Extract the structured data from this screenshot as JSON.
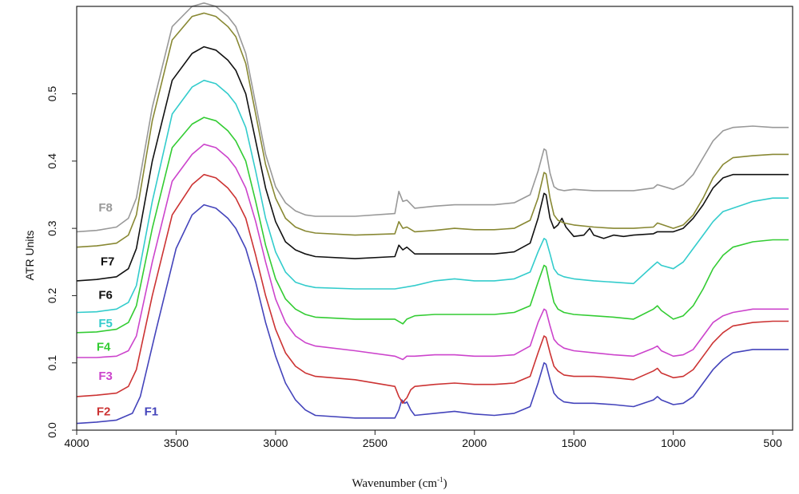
{
  "chart_data": {
    "type": "line",
    "xlabel": "Wavenumber",
    "xlabel_unit": "(cm",
    "xlabel_unit_exp": "-1",
    "xlabel_unit_close": ")",
    "ylabel": "ATR Units",
    "xlim": [
      4000,
      400
    ],
    "ylim": [
      0,
      0.63
    ],
    "x_reversed": true,
    "x_ticks": [
      4000,
      3500,
      3000,
      2500,
      2000,
      1500,
      1000,
      500
    ],
    "x_tick_labels": [
      "4000",
      "3500",
      "3000",
      "2500",
      "2000",
      "1500",
      "1000",
      "500"
    ],
    "y_ticks": [
      0.0,
      0.1,
      0.2,
      0.3,
      0.4,
      0.5
    ],
    "y_tick_labels": [
      "0.0",
      "0.1",
      "0.2",
      "0.3",
      "0.4",
      "0.5"
    ],
    "grid": false,
    "legend": "inline labels at left",
    "series": [
      {
        "name": "F1",
        "color": "#4444bb",
        "x": [
          4000,
          3900,
          3800,
          3720,
          3680,
          3600,
          3500,
          3420,
          3360,
          3300,
          3240,
          3200,
          3150,
          3100,
          3050,
          3000,
          2950,
          2900,
          2850,
          2800,
          2600,
          2400,
          2380,
          2365,
          2350,
          2340,
          2320,
          2300,
          2200,
          2100,
          2000,
          1900,
          1800,
          1720,
          1680,
          1650,
          1640,
          1620,
          1600,
          1580,
          1550,
          1500,
          1400,
          1300,
          1200,
          1100,
          1080,
          1060,
          1000,
          950,
          900,
          850,
          800,
          750,
          700,
          600,
          500,
          420
        ],
        "y": [
          0.01,
          0.012,
          0.015,
          0.025,
          0.05,
          0.15,
          0.27,
          0.32,
          0.335,
          0.33,
          0.315,
          0.3,
          0.27,
          0.22,
          0.16,
          0.11,
          0.07,
          0.045,
          0.03,
          0.022,
          0.018,
          0.018,
          0.03,
          0.045,
          0.04,
          0.042,
          0.03,
          0.022,
          0.025,
          0.028,
          0.024,
          0.022,
          0.025,
          0.035,
          0.07,
          0.1,
          0.098,
          0.075,
          0.055,
          0.048,
          0.042,
          0.04,
          0.04,
          0.038,
          0.035,
          0.045,
          0.05,
          0.045,
          0.038,
          0.04,
          0.05,
          0.07,
          0.09,
          0.105,
          0.115,
          0.12,
          0.12,
          0.12
        ]
      },
      {
        "name": "F2",
        "color": "#cc3333",
        "x": [
          4000,
          3900,
          3800,
          3740,
          3700,
          3620,
          3520,
          3420,
          3360,
          3300,
          3240,
          3200,
          3150,
          3100,
          3050,
          3000,
          2950,
          2900,
          2850,
          2800,
          2600,
          2400,
          2380,
          2360,
          2350,
          2340,
          2320,
          2300,
          2200,
          2100,
          2000,
          1900,
          1800,
          1720,
          1680,
          1650,
          1640,
          1620,
          1600,
          1580,
          1550,
          1500,
          1400,
          1300,
          1200,
          1100,
          1080,
          1060,
          1000,
          950,
          900,
          850,
          800,
          750,
          700,
          600,
          500,
          420
        ],
        "y": [
          0.05,
          0.052,
          0.055,
          0.065,
          0.09,
          0.2,
          0.32,
          0.365,
          0.38,
          0.375,
          0.36,
          0.345,
          0.315,
          0.26,
          0.2,
          0.15,
          0.115,
          0.095,
          0.085,
          0.08,
          0.075,
          0.065,
          0.05,
          0.04,
          0.045,
          0.048,
          0.06,
          0.065,
          0.068,
          0.07,
          0.068,
          0.068,
          0.07,
          0.08,
          0.115,
          0.14,
          0.138,
          0.115,
          0.095,
          0.088,
          0.082,
          0.08,
          0.08,
          0.078,
          0.075,
          0.088,
          0.092,
          0.085,
          0.078,
          0.08,
          0.09,
          0.11,
          0.13,
          0.145,
          0.155,
          0.16,
          0.162,
          0.162
        ]
      },
      {
        "name": "F3",
        "color": "#cc44cc",
        "x": [
          4000,
          3900,
          3800,
          3740,
          3700,
          3620,
          3520,
          3420,
          3360,
          3300,
          3240,
          3200,
          3150,
          3100,
          3050,
          3000,
          2950,
          2900,
          2850,
          2800,
          2600,
          2400,
          2360,
          2340,
          2300,
          2200,
          2100,
          2000,
          1900,
          1800,
          1720,
          1680,
          1650,
          1640,
          1620,
          1600,
          1580,
          1550,
          1500,
          1400,
          1300,
          1200,
          1100,
          1080,
          1060,
          1000,
          950,
          900,
          850,
          800,
          750,
          700,
          600,
          500,
          420
        ],
        "y": [
          0.108,
          0.108,
          0.11,
          0.118,
          0.14,
          0.25,
          0.37,
          0.41,
          0.425,
          0.42,
          0.405,
          0.39,
          0.36,
          0.31,
          0.25,
          0.195,
          0.16,
          0.14,
          0.13,
          0.125,
          0.118,
          0.11,
          0.105,
          0.11,
          0.11,
          0.112,
          0.112,
          0.11,
          0.11,
          0.112,
          0.125,
          0.16,
          0.18,
          0.178,
          0.155,
          0.135,
          0.128,
          0.122,
          0.118,
          0.115,
          0.112,
          0.11,
          0.122,
          0.125,
          0.118,
          0.11,
          0.112,
          0.12,
          0.14,
          0.16,
          0.17,
          0.175,
          0.18,
          0.18,
          0.18
        ]
      },
      {
        "name": "F4",
        "color": "#33cc33",
        "x": [
          4000,
          3900,
          3800,
          3740,
          3700,
          3620,
          3520,
          3420,
          3360,
          3300,
          3240,
          3200,
          3150,
          3100,
          3050,
          3000,
          2950,
          2900,
          2850,
          2800,
          2600,
          2400,
          2360,
          2340,
          2300,
          2200,
          2100,
          2000,
          1900,
          1800,
          1720,
          1680,
          1650,
          1640,
          1620,
          1600,
          1580,
          1550,
          1500,
          1400,
          1300,
          1200,
          1100,
          1080,
          1060,
          1000,
          950,
          900,
          850,
          800,
          750,
          700,
          600,
          500,
          420
        ],
        "y": [
          0.145,
          0.146,
          0.15,
          0.16,
          0.185,
          0.3,
          0.42,
          0.455,
          0.465,
          0.46,
          0.445,
          0.43,
          0.4,
          0.34,
          0.275,
          0.225,
          0.195,
          0.18,
          0.172,
          0.168,
          0.165,
          0.165,
          0.158,
          0.165,
          0.17,
          0.172,
          0.172,
          0.172,
          0.172,
          0.175,
          0.185,
          0.22,
          0.245,
          0.243,
          0.215,
          0.19,
          0.18,
          0.175,
          0.172,
          0.17,
          0.168,
          0.165,
          0.18,
          0.185,
          0.178,
          0.165,
          0.17,
          0.185,
          0.21,
          0.24,
          0.26,
          0.272,
          0.28,
          0.283,
          0.283
        ]
      },
      {
        "name": "F5",
        "color": "#33cccc",
        "x": [
          4000,
          3900,
          3800,
          3740,
          3700,
          3620,
          3520,
          3420,
          3360,
          3300,
          3240,
          3200,
          3150,
          3100,
          3050,
          3000,
          2950,
          2900,
          2850,
          2800,
          2600,
          2400,
          2300,
          2200,
          2100,
          2000,
          1900,
          1800,
          1720,
          1680,
          1650,
          1640,
          1620,
          1600,
          1580,
          1550,
          1500,
          1400,
          1300,
          1200,
          1100,
          1080,
          1060,
          1000,
          950,
          900,
          850,
          800,
          750,
          700,
          650,
          600,
          500,
          420
        ],
        "y": [
          0.175,
          0.176,
          0.18,
          0.19,
          0.215,
          0.34,
          0.47,
          0.51,
          0.52,
          0.515,
          0.5,
          0.485,
          0.45,
          0.385,
          0.315,
          0.265,
          0.235,
          0.22,
          0.215,
          0.212,
          0.21,
          0.21,
          0.215,
          0.222,
          0.225,
          0.222,
          0.222,
          0.225,
          0.235,
          0.265,
          0.285,
          0.283,
          0.262,
          0.24,
          0.232,
          0.228,
          0.225,
          0.222,
          0.22,
          0.218,
          0.245,
          0.25,
          0.245,
          0.24,
          0.25,
          0.27,
          0.29,
          0.31,
          0.325,
          0.33,
          0.335,
          0.34,
          0.345,
          0.345
        ]
      },
      {
        "name": "F6",
        "color": "#111111",
        "x": [
          4000,
          3900,
          3800,
          3740,
          3700,
          3620,
          3520,
          3420,
          3360,
          3300,
          3240,
          3200,
          3150,
          3100,
          3050,
          3000,
          2950,
          2900,
          2850,
          2800,
          2600,
          2400,
          2380,
          2360,
          2340,
          2300,
          2200,
          2100,
          2000,
          1900,
          1800,
          1720,
          1680,
          1650,
          1640,
          1620,
          1600,
          1580,
          1560,
          1540,
          1500,
          1450,
          1420,
          1400,
          1350,
          1300,
          1250,
          1200,
          1100,
          1080,
          1000,
          950,
          900,
          850,
          800,
          750,
          700,
          600,
          500,
          420
        ],
        "y": [
          0.222,
          0.224,
          0.228,
          0.24,
          0.27,
          0.4,
          0.52,
          0.56,
          0.57,
          0.565,
          0.55,
          0.535,
          0.5,
          0.43,
          0.36,
          0.31,
          0.28,
          0.268,
          0.262,
          0.258,
          0.255,
          0.258,
          0.275,
          0.268,
          0.272,
          0.262,
          0.262,
          0.262,
          0.262,
          0.262,
          0.265,
          0.278,
          0.315,
          0.352,
          0.35,
          0.315,
          0.3,
          0.305,
          0.315,
          0.302,
          0.288,
          0.29,
          0.3,
          0.29,
          0.285,
          0.29,
          0.288,
          0.29,
          0.292,
          0.295,
          0.295,
          0.3,
          0.315,
          0.335,
          0.36,
          0.375,
          0.38,
          0.38,
          0.38,
          0.38
        ]
      },
      {
        "name": "F7",
        "color": "#888833",
        "x": [
          4000,
          3900,
          3800,
          3740,
          3700,
          3620,
          3520,
          3420,
          3360,
          3300,
          3240,
          3200,
          3150,
          3100,
          3050,
          3000,
          2950,
          2900,
          2850,
          2800,
          2600,
          2400,
          2380,
          2360,
          2340,
          2300,
          2200,
          2100,
          2000,
          1900,
          1800,
          1720,
          1680,
          1650,
          1640,
          1620,
          1600,
          1580,
          1550,
          1500,
          1400,
          1300,
          1200,
          1100,
          1080,
          1000,
          950,
          900,
          850,
          800,
          750,
          700,
          600,
          500,
          420
        ],
        "y": [
          0.272,
          0.274,
          0.278,
          0.29,
          0.32,
          0.46,
          0.58,
          0.615,
          0.62,
          0.615,
          0.6,
          0.585,
          0.545,
          0.47,
          0.395,
          0.345,
          0.315,
          0.302,
          0.296,
          0.293,
          0.29,
          0.292,
          0.31,
          0.3,
          0.302,
          0.295,
          0.297,
          0.3,
          0.298,
          0.298,
          0.3,
          0.312,
          0.345,
          0.383,
          0.381,
          0.345,
          0.32,
          0.312,
          0.308,
          0.305,
          0.302,
          0.3,
          0.3,
          0.302,
          0.308,
          0.3,
          0.305,
          0.32,
          0.345,
          0.375,
          0.395,
          0.405,
          0.408,
          0.41,
          0.41
        ]
      },
      {
        "name": "F8",
        "color": "#999999",
        "x": [
          4000,
          3900,
          3800,
          3740,
          3700,
          3620,
          3520,
          3420,
          3360,
          3300,
          3240,
          3200,
          3150,
          3100,
          3050,
          3000,
          2950,
          2900,
          2850,
          2800,
          2600,
          2400,
          2380,
          2360,
          2340,
          2300,
          2200,
          2100,
          2000,
          1900,
          1800,
          1720,
          1680,
          1650,
          1640,
          1620,
          1600,
          1580,
          1550,
          1500,
          1400,
          1300,
          1200,
          1100,
          1080,
          1000,
          950,
          900,
          850,
          800,
          750,
          700,
          600,
          500,
          420
        ],
        "y": [
          0.295,
          0.297,
          0.302,
          0.315,
          0.345,
          0.48,
          0.6,
          0.63,
          0.635,
          0.63,
          0.615,
          0.6,
          0.56,
          0.485,
          0.41,
          0.362,
          0.338,
          0.326,
          0.32,
          0.318,
          0.318,
          0.322,
          0.355,
          0.34,
          0.342,
          0.33,
          0.333,
          0.335,
          0.335,
          0.335,
          0.338,
          0.35,
          0.385,
          0.418,
          0.416,
          0.382,
          0.362,
          0.358,
          0.356,
          0.358,
          0.356,
          0.356,
          0.356,
          0.36,
          0.365,
          0.358,
          0.365,
          0.38,
          0.405,
          0.43,
          0.445,
          0.45,
          0.452,
          0.45,
          0.45
        ]
      }
    ],
    "labels": [
      {
        "name": "F8",
        "text": "F8",
        "color": "#999999",
        "x": 3890,
        "y": 0.325,
        "weight": "normal"
      },
      {
        "name": "F7",
        "text": "F7",
        "color": "#111111",
        "x": 3880,
        "y": 0.245,
        "weight": "bold"
      },
      {
        "name": "F6",
        "text": "F6",
        "color": "#111111",
        "x": 3890,
        "y": 0.195,
        "weight": "bold"
      },
      {
        "name": "F5",
        "text": "F5",
        "color": "#33cccc",
        "x": 3890,
        "y": 0.153,
        "weight": "bold"
      },
      {
        "name": "F4",
        "text": "F4",
        "color": "#33cc33",
        "x": 3900,
        "y": 0.118,
        "weight": "bold"
      },
      {
        "name": "F3",
        "text": "F3",
        "color": "#cc44cc",
        "x": 3890,
        "y": 0.075,
        "weight": "bold"
      },
      {
        "name": "F2",
        "text": "F2",
        "color": "#cc3333",
        "x": 3900,
        "y": 0.022,
        "weight": "bold"
      },
      {
        "name": "F1",
        "text": "F1",
        "color": "#4444bb",
        "x": 3660,
        "y": 0.022,
        "weight": "normal"
      }
    ]
  }
}
